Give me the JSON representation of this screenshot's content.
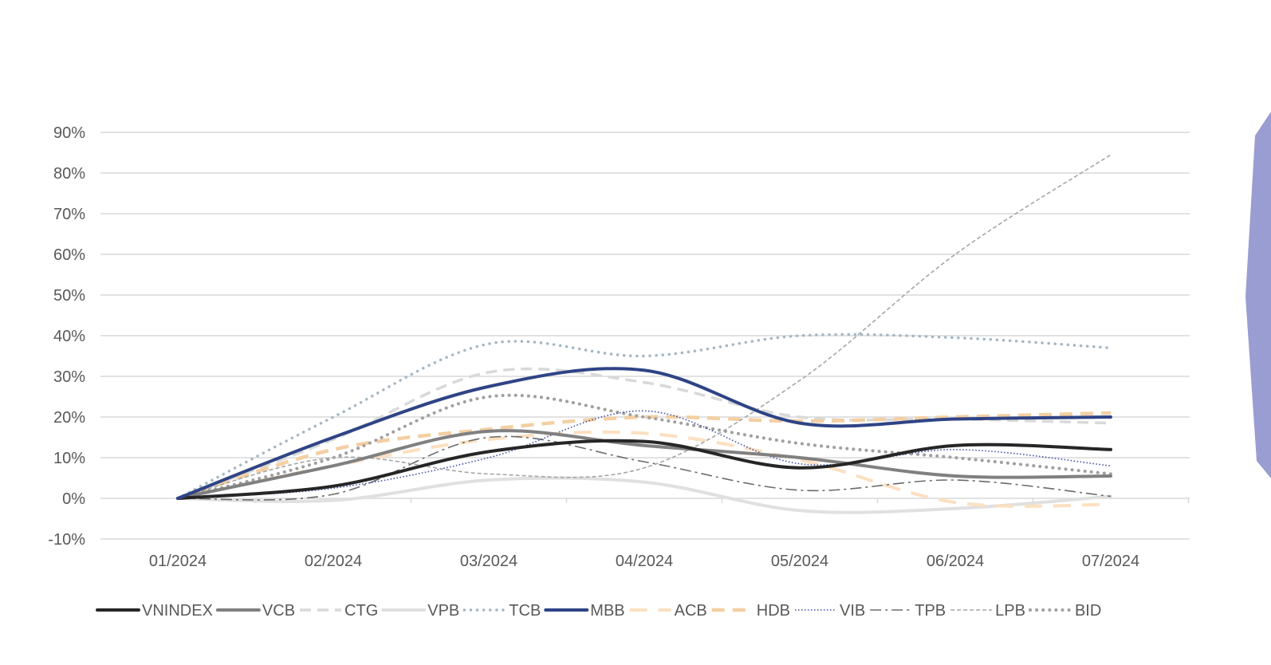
{
  "chart_data": {
    "type": "line",
    "x": [
      "01/2024",
      "02/2024",
      "03/2024",
      "04/2024",
      "05/2024",
      "06/2024",
      "07/2024"
    ],
    "ylim": [
      -10,
      90
    ],
    "yticks": [
      "90%",
      "80%",
      "70%",
      "60%",
      "50%",
      "40%",
      "30%",
      "20%",
      "10%",
      "0%",
      "-10%"
    ],
    "ytick_values": [
      90,
      80,
      70,
      60,
      50,
      40,
      30,
      20,
      10,
      0,
      -10
    ],
    "grid": true,
    "legend_position": "bottom",
    "series": [
      {
        "name": "VNINDEX",
        "values": [
          0,
          3,
          11.5,
          14,
          7.5,
          13,
          12
        ],
        "color": "#262626",
        "style": "solid-thick"
      },
      {
        "name": "VCB",
        "values": [
          0,
          8,
          16.5,
          13,
          10,
          5.5,
          5.5
        ],
        "color": "#808080",
        "style": "solid-thick"
      },
      {
        "name": "CTG",
        "values": [
          0,
          14.5,
          31,
          28.5,
          20,
          19.5,
          18.5
        ],
        "color": "#d9d9d9",
        "style": "dash"
      },
      {
        "name": "VPB",
        "values": [
          0,
          -0.5,
          4.5,
          4,
          -3,
          -2.5,
          0.5
        ],
        "color": "#e0e0e0",
        "style": "solid-thick"
      },
      {
        "name": "TCB",
        "values": [
          0,
          20,
          38,
          35,
          40,
          39.5,
          37
        ],
        "color": "#a5b7c5",
        "style": "dot"
      },
      {
        "name": "MBB",
        "values": [
          0,
          15,
          27.5,
          31.5,
          18.5,
          19.5,
          20
        ],
        "color": "#2f4486",
        "style": "solid-thick"
      },
      {
        "name": "ACB",
        "values": [
          0,
          8,
          14.5,
          16,
          9.5,
          -1,
          -1.5
        ],
        "color": "#fbe0c1",
        "style": "longdash"
      },
      {
        "name": "HDB",
        "values": [
          0,
          12,
          17,
          20,
          19,
          20,
          21
        ],
        "color": "#f3cfa3",
        "style": "dash-thick"
      },
      {
        "name": "VIB",
        "values": [
          0,
          2.5,
          10,
          21.5,
          8.5,
          12,
          8
        ],
        "color": "#3f4fa8",
        "style": "fine-dot"
      },
      {
        "name": "TPB",
        "values": [
          0,
          1,
          15,
          9,
          2,
          4.5,
          0.5
        ],
        "color": "#6b6b6b",
        "style": "dashdot"
      },
      {
        "name": "LPB",
        "values": [
          0,
          10,
          6,
          7.5,
          29,
          60,
          84.5
        ],
        "color": "#a6a6a6",
        "style": "fine-dash"
      },
      {
        "name": "BID",
        "values": [
          0,
          10,
          25,
          20,
          13.5,
          10,
          6
        ],
        "color": "#a0a0a0",
        "style": "dot-thick"
      }
    ]
  },
  "decor": {
    "accent_shape_color": "#9a9dd2"
  }
}
